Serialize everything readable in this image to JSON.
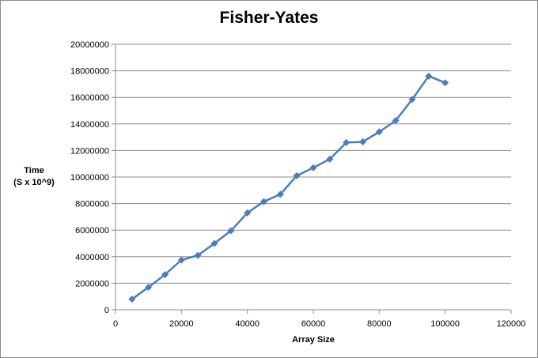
{
  "chart_data": {
    "type": "line",
    "title": "Fisher-Yates",
    "ylabel_lines": [
      "Time",
      "(S x 10^9)"
    ],
    "xlabel": "Array Size",
    "xlim": [
      0,
      120000
    ],
    "ylim": [
      0,
      20000000
    ],
    "x_ticks": [
      0,
      20000,
      40000,
      60000,
      80000,
      100000,
      120000
    ],
    "y_ticks": [
      0,
      2000000,
      4000000,
      6000000,
      8000000,
      10000000,
      12000000,
      14000000,
      16000000,
      18000000,
      20000000
    ],
    "grid": "horizontal",
    "legend": "none",
    "color": "#4a7ebb",
    "series": [
      {
        "x": [
          5000,
          10000,
          15000,
          20000,
          25000,
          30000,
          35000,
          40000,
          45000,
          50000,
          55000,
          60000,
          65000,
          70000,
          75000,
          80000,
          85000,
          90000,
          95000,
          100000
        ],
        "y": [
          800000,
          1700000,
          2650000,
          3750000,
          4100000,
          5000000,
          5950000,
          7300000,
          8150000,
          8700000,
          10100000,
          10700000,
          11350000,
          12600000,
          12650000,
          13400000,
          14250000,
          15850000,
          17600000,
          17100000
        ]
      }
    ]
  }
}
